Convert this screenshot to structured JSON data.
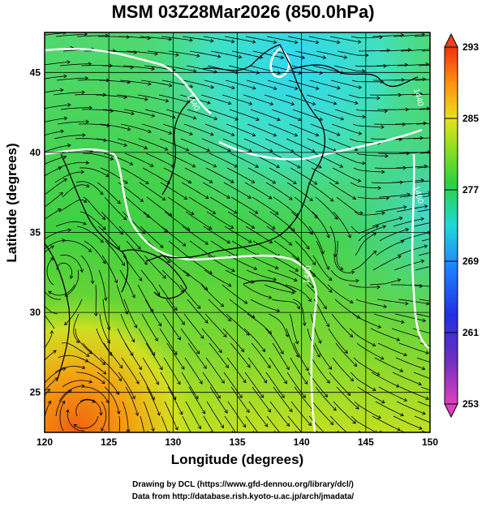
{
  "title": "MSM 03Z28Mar2026 (850.0hPa)",
  "xlabel": "Longitude (degrees)",
  "ylabel": "Latitude  (degrees)",
  "credits": {
    "line1": "Drawing by DCL (https://www.gfd-dennou.org/library/dcl/)",
    "line2": "Data from http://database.rish.kyoto-u.ac.jp/arch/jmadata/"
  },
  "map": {
    "lon_range": [
      120,
      150
    ],
    "lat_range": [
      22.5,
      47.5
    ],
    "x_ticks": [
      "120",
      "125",
      "130",
      "135",
      "140",
      "145",
      "150"
    ],
    "y_ticks": [
      "25",
      "30",
      "35",
      "40",
      "45"
    ],
    "contour_labels": [
      "1440",
      "1440",
      "1480",
      "1460"
    ]
  },
  "colorbar": {
    "ticks": [
      "293",
      "285",
      "277",
      "269",
      "261",
      "253"
    ],
    "min": 253,
    "max": 293
  }
}
